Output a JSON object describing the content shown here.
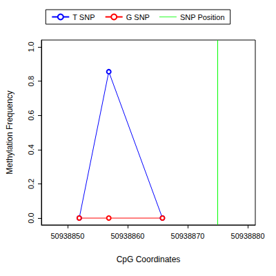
{
  "chart_data": {
    "type": "line",
    "x_label": "CpG Coordinates",
    "y_label": "Methylation Frequency",
    "x": [
      50938851.95,
      50938856.87,
      50938865.8
    ],
    "series": [
      {
        "name": "T SNP",
        "color": "#0000ff",
        "values": [
          0,
          0.855,
          0
        ],
        "marker": "circle"
      },
      {
        "name": "G SNP",
        "color": "#ff0000",
        "values": [
          0,
          0,
          0
        ],
        "marker": "circle"
      },
      {
        "name": "SNP Position",
        "color": "#00ff00",
        "type": "vline",
        "x": 50938875
      }
    ],
    "xlim": [
      50938845.65,
      50938881.26
    ],
    "xticks": [
      50938850,
      50938860,
      50938870,
      50938880
    ],
    "ylim": [
      -0.04,
      1.04
    ],
    "yticks": [
      {
        "value": 0,
        "label": "0.0"
      },
      {
        "value": 0.2,
        "label": "0.2"
      },
      {
        "value": 0.4,
        "label": "0.4"
      },
      {
        "value": 0.6,
        "label": "0.6"
      },
      {
        "value": 0.8,
        "label": "0.8"
      },
      {
        "value": 1,
        "label": "1.0"
      }
    ],
    "grid": false,
    "legend": "top"
  }
}
